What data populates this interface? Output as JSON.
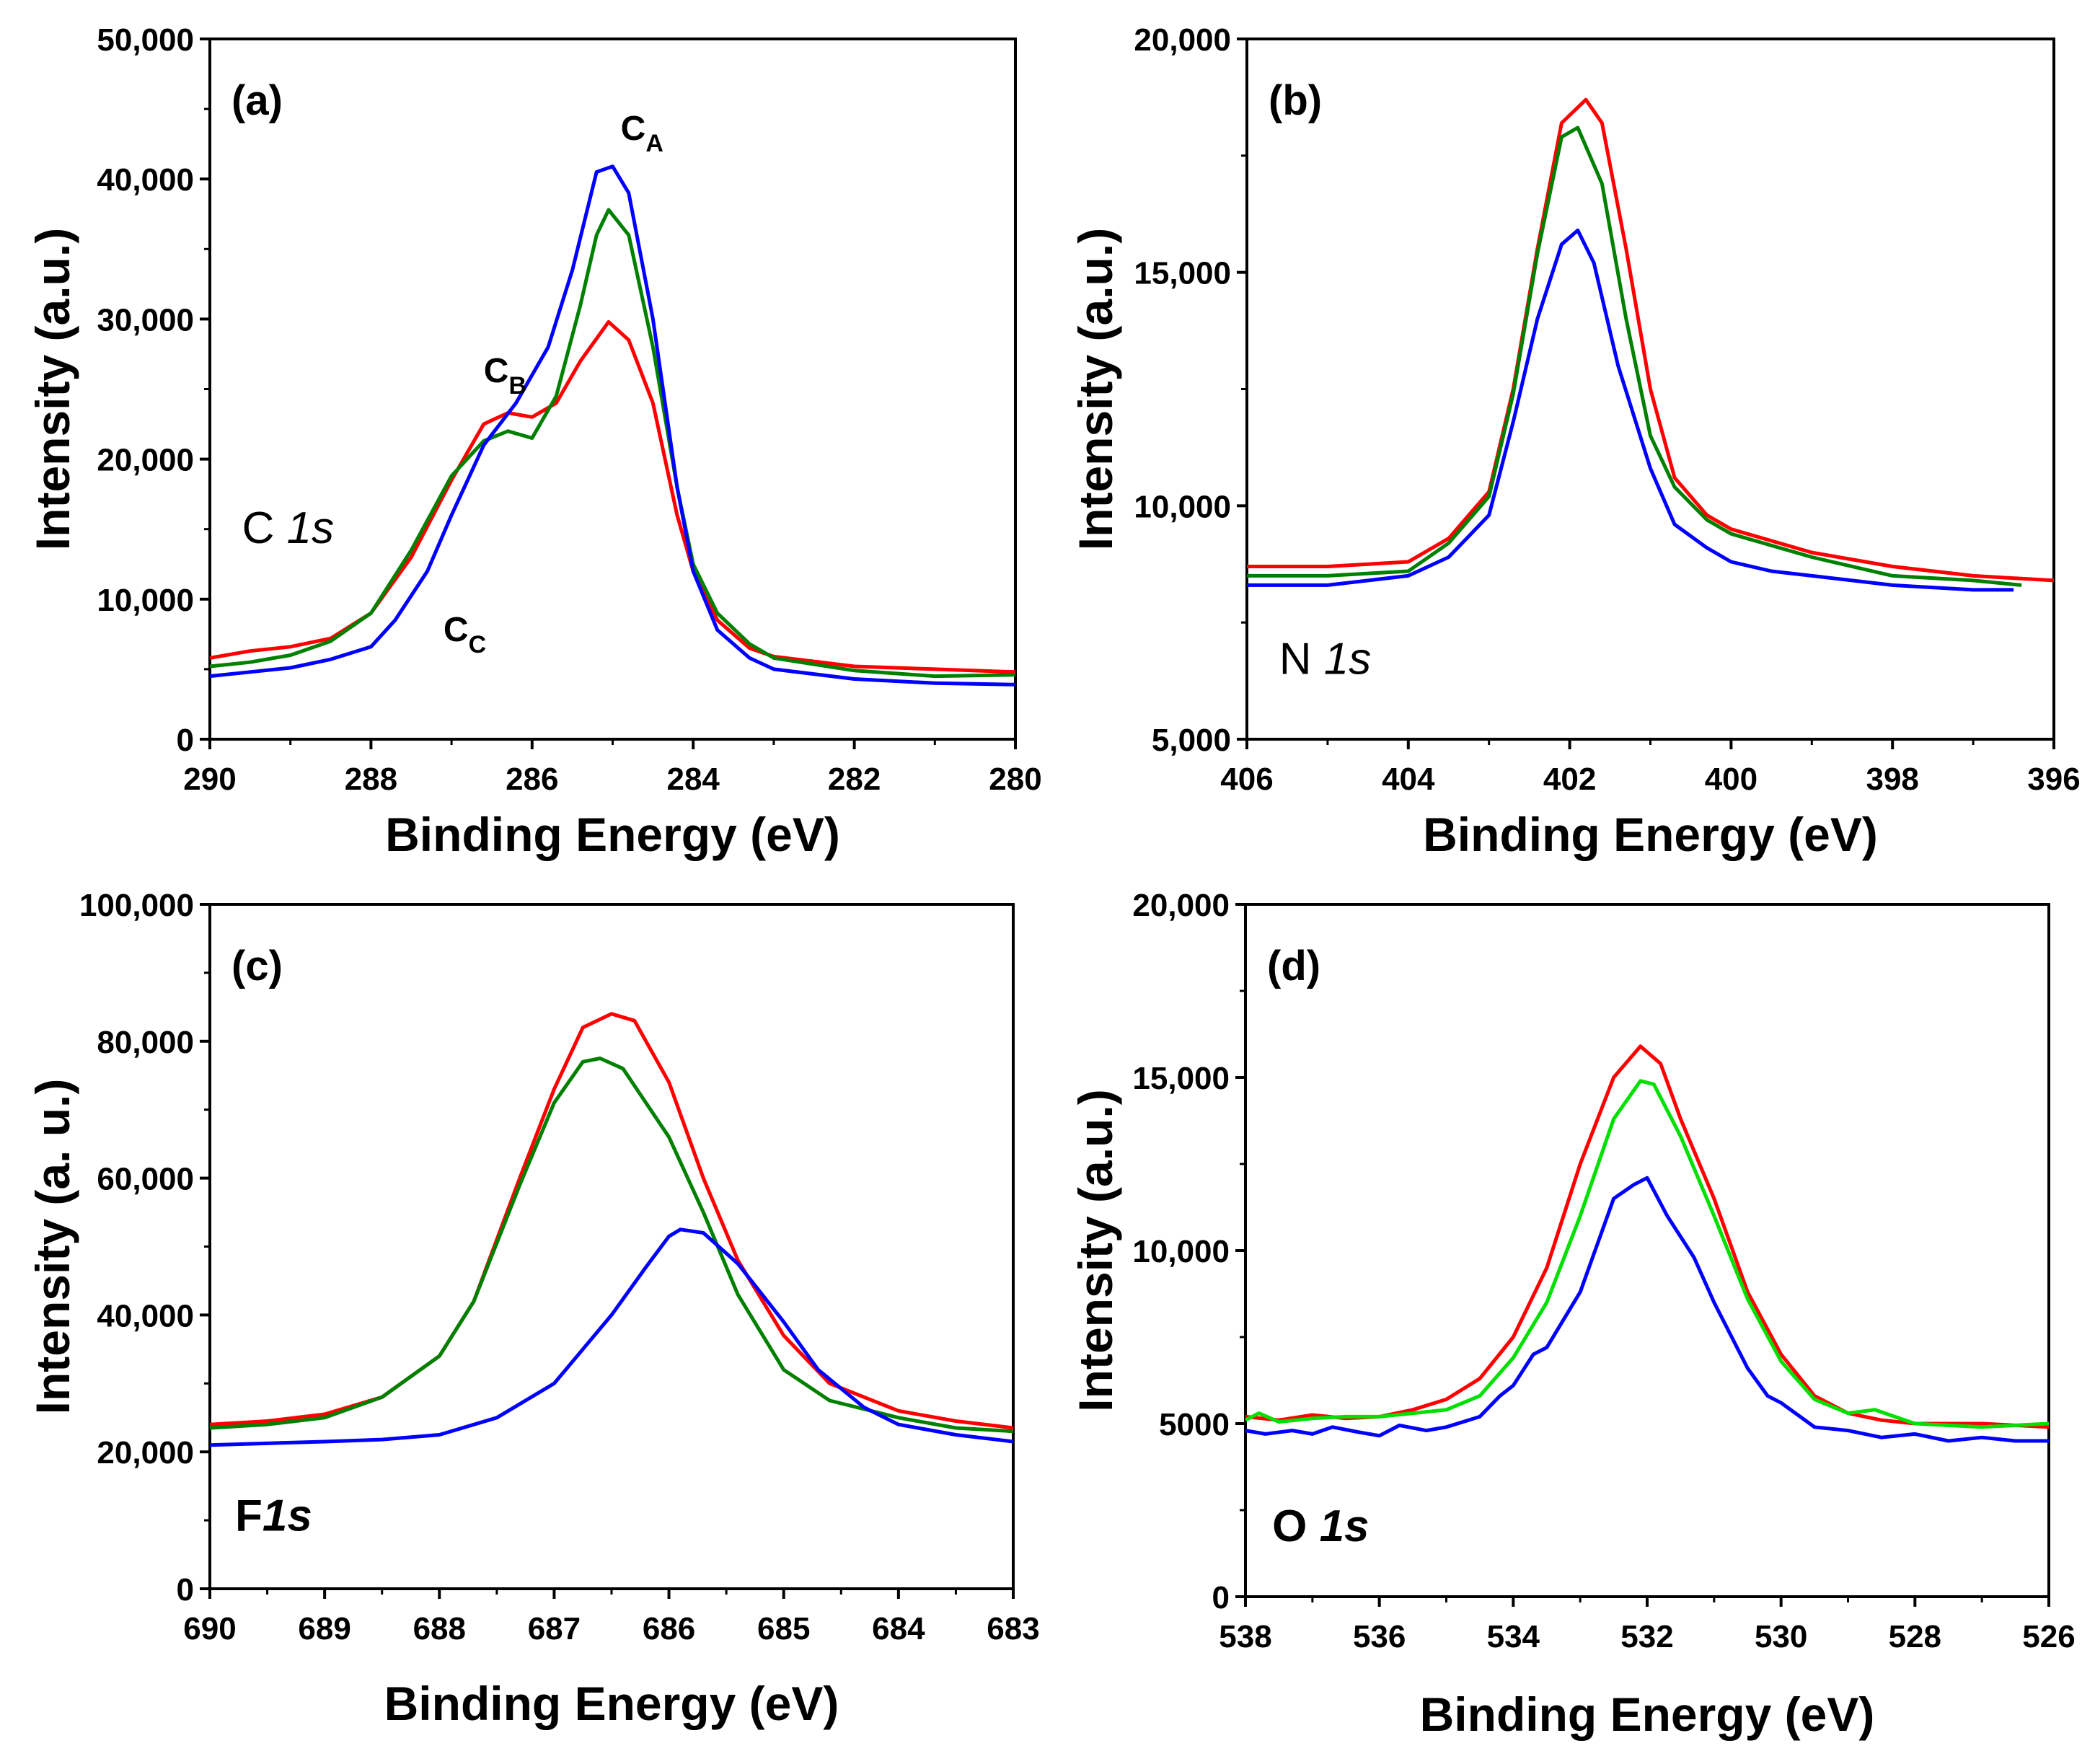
{
  "chart_data": [
    {
      "type": "line",
      "panel_label": "(a)",
      "xlabel": "Binding Energy (eV)",
      "ylabel": "Intensity (a.u.)",
      "xlim": [
        290,
        280
      ],
      "ylim": [
        0,
        50000
      ],
      "xticks": [
        290,
        288,
        286,
        284,
        282,
        280
      ],
      "xtick_labels": [
        "290",
        "288",
        "286",
        "284",
        "282",
        "280"
      ],
      "yticks": [
        0,
        10000,
        20000,
        30000,
        40000,
        50000
      ],
      "ytick_labels": [
        "0",
        "10,000",
        "20,000",
        "30,000",
        "40,000",
        "50,000"
      ],
      "element_label": {
        "prefix": "C ",
        "italic": "1s",
        "bold": false,
        "x": 289.6,
        "y": 14000
      },
      "annotations": [
        {
          "main": "C",
          "sub": "A",
          "x": 284.9,
          "y": 42800
        },
        {
          "main": "C",
          "sub": "B",
          "x": 286.6,
          "y": 25500
        },
        {
          "main": "C",
          "sub": "C",
          "x": 287.1,
          "y": 7000
        }
      ],
      "series": [
        {
          "name": "red",
          "color": "#ff0000",
          "x": [
            290,
            289.5,
            289,
            288.5,
            288,
            287.5,
            287,
            286.6,
            286.3,
            286,
            285.7,
            285.4,
            285.05,
            284.8,
            284.5,
            284.2,
            284,
            283.7,
            283.3,
            283,
            282,
            281,
            280
          ],
          "y": [
            5800,
            6300,
            6600,
            7200,
            9000,
            13000,
            18500,
            22500,
            23300,
            23000,
            24000,
            27000,
            29800,
            28500,
            24000,
            16000,
            12000,
            8500,
            6500,
            5900,
            5200,
            5000,
            4800
          ]
        },
        {
          "name": "green",
          "color": "#008000",
          "x": [
            290,
            289.5,
            289,
            288.5,
            288,
            287.5,
            287,
            286.6,
            286.3,
            286,
            285.7,
            285.4,
            285.2,
            285.05,
            284.8,
            284.5,
            284.2,
            284,
            283.7,
            283.3,
            283,
            282,
            281,
            280
          ],
          "y": [
            5200,
            5500,
            6000,
            7000,
            9000,
            13500,
            18800,
            21300,
            22000,
            21500,
            24500,
            31000,
            36000,
            37800,
            36000,
            28000,
            18000,
            12500,
            9000,
            6800,
            5800,
            4900,
            4500,
            4600
          ]
        },
        {
          "name": "blue",
          "color": "#0000ff",
          "x": [
            290,
            289.5,
            289,
            288.5,
            288,
            287.7,
            287.3,
            287,
            286.6,
            286.2,
            285.8,
            285.5,
            285.2,
            285,
            284.8,
            284.5,
            284.2,
            284,
            283.7,
            283.3,
            283,
            282,
            281,
            280
          ],
          "y": [
            4500,
            4800,
            5100,
            5700,
            6600,
            8500,
            12000,
            16000,
            21000,
            24000,
            28000,
            33500,
            40500,
            40900,
            39000,
            30000,
            18000,
            12000,
            7800,
            5800,
            5000,
            4300,
            4000,
            3900
          ]
        }
      ]
    },
    {
      "type": "line",
      "panel_label": "(b)",
      "xlabel": "Binding Energy (eV)",
      "ylabel": "Intensity (a.u.)",
      "xlim": [
        406,
        396
      ],
      "ylim": [
        5000,
        20000
      ],
      "xticks": [
        406,
        404,
        402,
        400,
        398,
        396
      ],
      "xtick_labels": [
        "406",
        "404",
        "402",
        "400",
        "398",
        "396"
      ],
      "yticks": [
        5000,
        10000,
        15000,
        20000
      ],
      "ytick_labels": [
        "5,000",
        "10,000",
        "15,000",
        "20,000"
      ],
      "element_label": {
        "prefix": "N ",
        "italic": "1s",
        "bold": false,
        "x": 405.6,
        "y": 6400
      },
      "annotations": [],
      "series": [
        {
          "name": "red",
          "color": "#ff0000",
          "x": [
            406,
            405,
            404,
            403.5,
            403,
            402.7,
            402.4,
            402.1,
            401.8,
            401.6,
            401.3,
            401,
            400.7,
            400.3,
            400,
            399,
            398,
            397,
            396
          ],
          "y": [
            8700,
            8700,
            8800,
            9300,
            10300,
            12500,
            15500,
            18200,
            18700,
            18200,
            15500,
            12500,
            10600,
            9800,
            9500,
            9000,
            8700,
            8500,
            8400
          ]
        },
        {
          "name": "green",
          "color": "#008000",
          "x": [
            406,
            405,
            404,
            403.5,
            403,
            402.7,
            402.4,
            402.1,
            401.9,
            401.6,
            401.3,
            401,
            400.7,
            400.3,
            400,
            399,
            398,
            397,
            396.4
          ],
          "y": [
            8500,
            8500,
            8600,
            9200,
            10200,
            12400,
            15400,
            17900,
            18100,
            16900,
            14000,
            11500,
            10400,
            9700,
            9400,
            8900,
            8500,
            8400,
            8300
          ]
        },
        {
          "name": "blue",
          "color": "#0000ff",
          "x": [
            406,
            405,
            404,
            403.5,
            403,
            402.7,
            402.4,
            402.1,
            401.9,
            401.7,
            401.4,
            401,
            400.7,
            400.3,
            400,
            399.5,
            399,
            398,
            397,
            396.5
          ],
          "y": [
            8300,
            8300,
            8500,
            8900,
            9800,
            11800,
            14000,
            15600,
            15900,
            15200,
            13000,
            10800,
            9600,
            9100,
            8800,
            8600,
            8500,
            8300,
            8200,
            8200
          ]
        }
      ]
    },
    {
      "type": "line",
      "panel_label": "(c)",
      "xlabel": "Binding Energy (eV)",
      "ylabel": "Intensity (a. u.)",
      "xlim": [
        690,
        683
      ],
      "ylim": [
        0,
        100000
      ],
      "xticks": [
        690,
        689,
        688,
        687,
        686,
        685,
        684,
        683
      ],
      "xtick_labels": [
        "690",
        "689",
        "688",
        "687",
        "686",
        "685",
        "684",
        "683"
      ],
      "yticks": [
        0,
        20000,
        40000,
        60000,
        80000,
        100000
      ],
      "ytick_labels": [
        "0",
        "20,000",
        "40,000",
        "60,000",
        "80,000",
        "100,000"
      ],
      "element_label": {
        "prefix": "F",
        "italic": "1s",
        "bold": true,
        "x": 689.78,
        "y": 8500
      },
      "annotations": [],
      "series": [
        {
          "name": "red",
          "color": "#ff0000",
          "x": [
            690,
            689.5,
            689,
            688.5,
            688,
            687.7,
            687.3,
            687,
            686.75,
            686.5,
            686.3,
            686,
            685.7,
            685.4,
            685,
            684.6,
            684,
            683.5,
            683
          ],
          "y": [
            24000,
            24500,
            25500,
            28000,
            34000,
            42000,
            60000,
            73000,
            82000,
            84000,
            83000,
            74000,
            60000,
            48000,
            37000,
            30000,
            26000,
            24500,
            23500
          ]
        },
        {
          "name": "green",
          "color": "#008000",
          "x": [
            690,
            689.5,
            689,
            688.5,
            688,
            687.7,
            687.3,
            687,
            686.75,
            686.6,
            686.4,
            686,
            685.7,
            685.4,
            685,
            684.6,
            684,
            683.5,
            683
          ],
          "y": [
            23500,
            24000,
            25000,
            28000,
            34000,
            42000,
            59000,
            71000,
            77000,
            77500,
            76000,
            66000,
            55000,
            43000,
            32000,
            27500,
            25000,
            23500,
            23000
          ]
        },
        {
          "name": "blue",
          "color": "#0000ff",
          "x": [
            690,
            689,
            688.5,
            688,
            687.5,
            687,
            686.8,
            686.5,
            686.2,
            686,
            685.9,
            685.7,
            685.4,
            685,
            684.7,
            684.3,
            684,
            683.5,
            683
          ],
          "y": [
            21000,
            21500,
            21800,
            22500,
            25000,
            30000,
            34000,
            40000,
            47000,
            51500,
            52500,
            52000,
            47500,
            39000,
            32000,
            26500,
            24000,
            22500,
            21500
          ]
        }
      ]
    },
    {
      "type": "line",
      "panel_label": "(d)",
      "xlabel": "Binding Energy (eV)",
      "ylabel": "Intensity  (a.u.)",
      "xlim": [
        538,
        526
      ],
      "ylim": [
        0,
        20000
      ],
      "xticks": [
        538,
        536,
        534,
        532,
        530,
        528,
        526
      ],
      "xtick_labels": [
        "538",
        "536",
        "534",
        "532",
        "530",
        "528",
        "526"
      ],
      "yticks": [
        0,
        5000,
        10000,
        15000,
        20000
      ],
      "ytick_labels": [
        "0",
        "5000",
        "10,000",
        "15,000",
        "20,000"
      ],
      "element_label": {
        "prefix": "O ",
        "italic": "1s",
        "bold": true,
        "x": 537.6,
        "y": 1600
      },
      "annotations": [],
      "series": [
        {
          "name": "red",
          "color": "#ff0000",
          "x": [
            538,
            537.5,
            537,
            536.5,
            536,
            535.5,
            535,
            534.5,
            534,
            533.5,
            533,
            532.5,
            532.1,
            531.8,
            531.5,
            531,
            530.5,
            530,
            529.5,
            529,
            528.5,
            528,
            527,
            526
          ],
          "y": [
            5200,
            5100,
            5250,
            5150,
            5200,
            5400,
            5700,
            6300,
            7500,
            9500,
            12500,
            15000,
            15900,
            15400,
            13800,
            11500,
            8800,
            7000,
            5800,
            5300,
            5100,
            5000,
            5000,
            4900
          ]
        },
        {
          "name": "green",
          "color": "#00e000",
          "x": [
            538,
            537.8,
            537.5,
            537,
            536.5,
            536,
            535.5,
            535,
            534.5,
            534,
            533.5,
            533,
            532.5,
            532.1,
            531.9,
            531.5,
            531,
            530.5,
            530,
            529.5,
            529,
            528.6,
            528,
            527,
            526
          ],
          "y": [
            5100,
            5300,
            5050,
            5150,
            5200,
            5200,
            5300,
            5400,
            5800,
            6900,
            8500,
            11000,
            13800,
            14900,
            14800,
            13300,
            11000,
            8600,
            6800,
            5700,
            5300,
            5400,
            5000,
            4900,
            5000
          ]
        },
        {
          "name": "blue",
          "color": "#0000ff",
          "x": [
            538,
            537.7,
            537.3,
            537,
            536.7,
            536.3,
            536,
            535.7,
            535.3,
            535,
            534.5,
            534.2,
            534,
            533.7,
            533.5,
            533,
            532.5,
            532.2,
            532,
            531.7,
            531.3,
            531,
            530.5,
            530.2,
            530,
            529.5,
            529,
            528.5,
            528,
            527.5,
            527,
            526.5,
            526
          ],
          "y": [
            4800,
            4700,
            4800,
            4700,
            4900,
            4750,
            4650,
            4950,
            4800,
            4900,
            5200,
            5800,
            6100,
            7000,
            7200,
            8800,
            11500,
            11900,
            12100,
            11000,
            9800,
            8500,
            6600,
            5800,
            5600,
            4900,
            4800,
            4600,
            4700,
            4500,
            4600,
            4500,
            4500
          ]
        }
      ]
    }
  ]
}
